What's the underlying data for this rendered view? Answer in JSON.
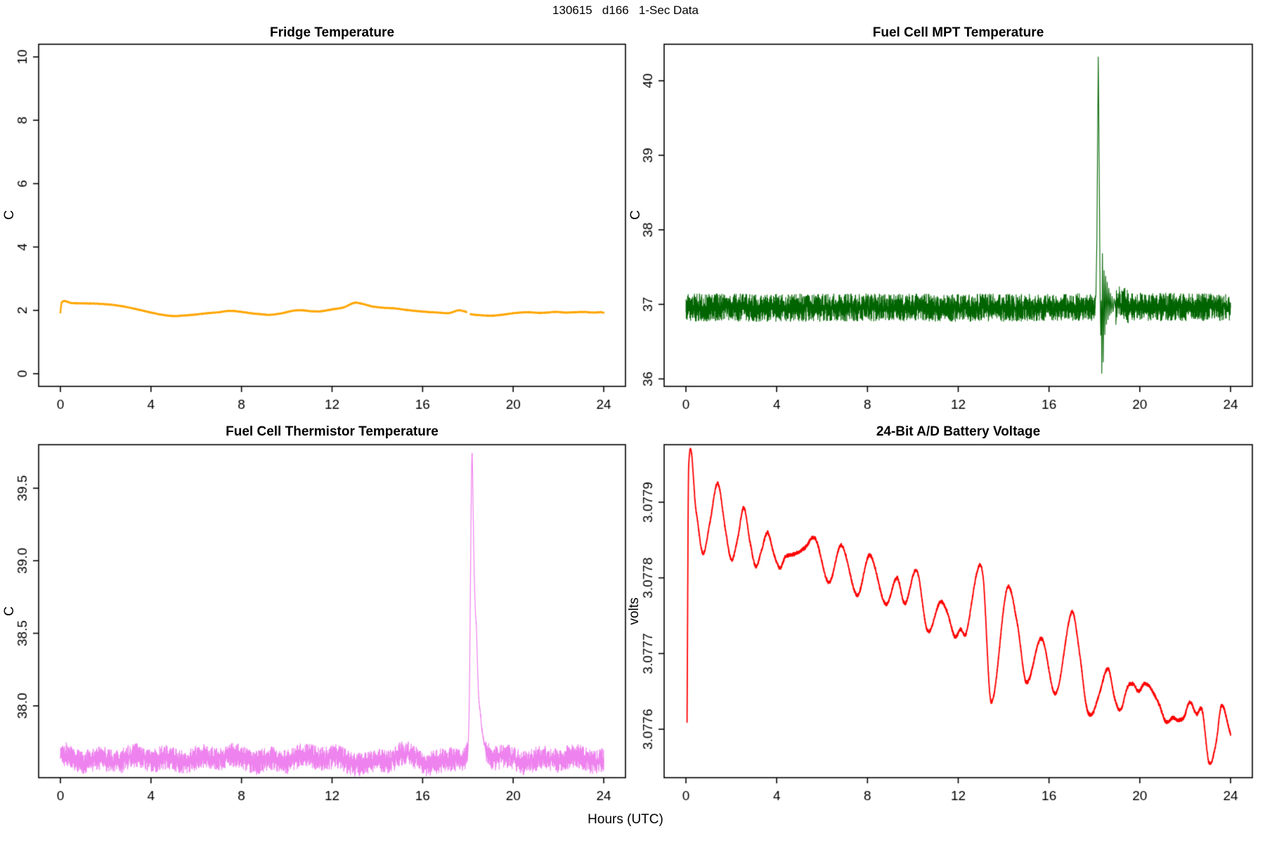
{
  "page": {
    "title": "130615   d166   1-Sec Data",
    "xlabel": "Hours (UTC)"
  },
  "chart_data": [
    {
      "type": "line",
      "title": "Fridge Temperature",
      "ylabel": "C",
      "color": "#FFA500",
      "line_width": 2.4,
      "smooth": true,
      "seed": 11,
      "xlim": [
        -0.96,
        24.96
      ],
      "xticks": [
        0,
        4,
        8,
        12,
        16,
        20,
        24
      ],
      "ylim": [
        -0.4,
        10.4
      ],
      "yticks": [
        0,
        2,
        4,
        6,
        8,
        10
      ],
      "ytick_labels": [
        "0",
        "2",
        "4",
        "6",
        "8",
        "10"
      ],
      "grid": false,
      "legend": null,
      "gaps": [
        [
          17.94,
          18.11
        ]
      ],
      "noise_segments": [
        [
          0,
          24,
          0.006
        ]
      ],
      "wander": [],
      "keypoints": [
        [
          0.0,
          1.93
        ],
        [
          0.06,
          2.26
        ],
        [
          0.5,
          2.23
        ],
        [
          1.0,
          2.22
        ],
        [
          1.6,
          2.21
        ],
        [
          2.2,
          2.18
        ],
        [
          2.8,
          2.12
        ],
        [
          3.4,
          2.03
        ],
        [
          4.0,
          1.93
        ],
        [
          4.5,
          1.86
        ],
        [
          5.0,
          1.82
        ],
        [
          5.5,
          1.84
        ],
        [
          6.0,
          1.87
        ],
        [
          6.5,
          1.91
        ],
        [
          7.0,
          1.94
        ],
        [
          7.4,
          1.98
        ],
        [
          7.8,
          1.97
        ],
        [
          8.3,
          1.92
        ],
        [
          8.8,
          1.88
        ],
        [
          9.3,
          1.86
        ],
        [
          9.8,
          1.91
        ],
        [
          10.3,
          1.99
        ],
        [
          10.7,
          2.0
        ],
        [
          11.1,
          1.97
        ],
        [
          11.5,
          1.97
        ],
        [
          12.0,
          2.03
        ],
        [
          12.5,
          2.09
        ],
        [
          13.0,
          2.24
        ],
        [
          13.3,
          2.21
        ],
        [
          13.8,
          2.12
        ],
        [
          14.3,
          2.08
        ],
        [
          14.8,
          2.06
        ],
        [
          15.2,
          2.02
        ],
        [
          15.7,
          1.98
        ],
        [
          16.2,
          1.95
        ],
        [
          16.7,
          1.93
        ],
        [
          17.1,
          1.91
        ],
        [
          17.35,
          1.95
        ],
        [
          17.6,
          2.0
        ],
        [
          17.93,
          1.95
        ],
        [
          18.12,
          1.88
        ],
        [
          18.5,
          1.85
        ],
        [
          19.0,
          1.83
        ],
        [
          19.5,
          1.86
        ],
        [
          19.9,
          1.9
        ],
        [
          20.3,
          1.93
        ],
        [
          20.7,
          1.94
        ],
        [
          21.1,
          1.92
        ],
        [
          21.5,
          1.93
        ],
        [
          21.9,
          1.95
        ],
        [
          22.3,
          1.93
        ],
        [
          22.7,
          1.94
        ],
        [
          23.1,
          1.95
        ],
        [
          23.5,
          1.93
        ],
        [
          23.9,
          1.94
        ],
        [
          24.0,
          1.92
        ]
      ]
    },
    {
      "type": "line",
      "title": "Fuel Cell MPT Temperature",
      "ylabel": "C",
      "color": "#006400",
      "line_width": 1.1,
      "smooth": false,
      "seed": 22,
      "xlim": [
        -0.96,
        24.96
      ],
      "xticks": [
        0,
        4,
        8,
        12,
        16,
        20,
        24
      ],
      "ylim": [
        35.9,
        40.49
      ],
      "yticks": [
        36,
        37,
        38,
        39,
        40
      ],
      "ytick_labels": [
        "36",
        "37",
        "38",
        "39",
        "40"
      ],
      "grid": false,
      "legend": null,
      "gaps": [],
      "noise_segments": [
        [
          0,
          18.04,
          0.1
        ],
        [
          18.04,
          18.93,
          0.012
        ],
        [
          18.93,
          19.5,
          0.13
        ],
        [
          19.5,
          24,
          0.1
        ]
      ],
      "wander": [],
      "keypoints": [
        [
          0,
          36.96
        ],
        [
          4,
          36.955
        ],
        [
          8,
          36.96
        ],
        [
          12,
          36.955
        ],
        [
          16,
          36.96
        ],
        [
          17.9,
          36.96
        ],
        [
          18.02,
          36.98
        ],
        [
          18.07,
          37.15
        ],
        [
          18.11,
          37.9
        ],
        [
          18.17,
          40.32
        ],
        [
          18.22,
          38.5
        ],
        [
          18.25,
          37.2
        ],
        [
          18.28,
          36.59
        ],
        [
          18.305,
          37.05
        ],
        [
          18.325,
          36.08
        ],
        [
          18.355,
          37.67
        ],
        [
          18.39,
          36.23
        ],
        [
          18.425,
          37.45
        ],
        [
          18.46,
          36.6
        ],
        [
          18.495,
          37.38
        ],
        [
          18.53,
          36.72
        ],
        [
          18.565,
          37.3
        ],
        [
          18.6,
          36.8
        ],
        [
          18.635,
          37.22
        ],
        [
          18.67,
          36.85
        ],
        [
          18.705,
          37.15
        ],
        [
          18.74,
          36.88
        ],
        [
          18.78,
          37.1
        ],
        [
          18.82,
          36.9
        ],
        [
          18.87,
          37.07
        ],
        [
          18.93,
          36.95
        ],
        [
          19.1,
          37.0
        ],
        [
          19.5,
          36.97
        ],
        [
          24,
          36.96
        ]
      ]
    },
    {
      "type": "line",
      "title": "Fuel Cell Thermistor Temperature",
      "ylabel": "C",
      "color": "#EE82EE",
      "line_width": 1.2,
      "smooth": true,
      "seed": 33,
      "xlim": [
        -0.96,
        24.96
      ],
      "xticks": [
        0,
        4,
        8,
        12,
        16,
        20,
        24
      ],
      "ylim": [
        37.505,
        39.8
      ],
      "yticks": [
        38.0,
        38.5,
        39.0,
        39.5
      ],
      "ytick_labels": [
        "38.0",
        "38.5",
        "39.0",
        "39.5"
      ],
      "grid": false,
      "legend": null,
      "gaps": [],
      "noise_segments": [
        [
          0,
          18.0,
          0.045
        ],
        [
          18.0,
          18.78,
          0.012
        ],
        [
          18.78,
          24,
          0.045
        ]
      ],
      "wander": [
        {
          "amp": 0.018,
          "period": 1.5,
          "phase": 0.5
        },
        {
          "amp": 0.012,
          "period": 3.8,
          "phase": 2.1
        }
      ],
      "keypoints": [
        [
          0,
          37.64
        ],
        [
          3,
          37.63
        ],
        [
          6,
          37.64
        ],
        [
          9,
          37.63
        ],
        [
          12,
          37.64
        ],
        [
          13.8,
          37.61
        ],
        [
          15.3,
          37.65
        ],
        [
          16.6,
          37.61
        ],
        [
          17.3,
          37.65
        ],
        [
          17.85,
          37.63
        ],
        [
          17.95,
          37.66
        ],
        [
          18.02,
          37.74
        ],
        [
          18.07,
          38.12
        ],
        [
          18.12,
          38.95
        ],
        [
          18.16,
          39.55
        ],
        [
          18.19,
          39.71
        ],
        [
          18.23,
          39.32
        ],
        [
          18.28,
          38.88
        ],
        [
          18.33,
          38.62
        ],
        [
          18.38,
          38.5
        ],
        [
          18.43,
          38.22
        ],
        [
          18.48,
          38.03
        ],
        [
          18.54,
          37.95
        ],
        [
          18.62,
          37.83
        ],
        [
          18.72,
          37.74
        ],
        [
          18.84,
          37.68
        ],
        [
          19.05,
          37.65
        ],
        [
          19.4,
          37.64
        ],
        [
          24,
          37.63
        ]
      ]
    },
    {
      "type": "line",
      "title": "24-Bit A/D Battery Voltage",
      "ylabel": "volts",
      "color": "#FF0000",
      "line_width": 1.8,
      "smooth": true,
      "seed": 44,
      "xlim": [
        -0.96,
        24.96
      ],
      "xticks": [
        0,
        4,
        8,
        12,
        16,
        20,
        24
      ],
      "ylim": [
        3.077536,
        3.077976
      ],
      "yticks": [
        3.0776,
        3.0777,
        3.0778,
        3.0779
      ],
      "ytick_labels": [
        "3.0776",
        "3.0777",
        "3.0778",
        "3.0779"
      ],
      "grid": false,
      "legend": null,
      "gaps": [],
      "noise_segments": [
        [
          0,
          24,
          1.3e-06
        ]
      ],
      "wander": [],
      "keypoints": [
        [
          0.05,
          3.07761
        ],
        [
          0.12,
          3.077945
        ],
        [
          0.45,
          3.077888
        ],
        [
          0.75,
          3.077832
        ],
        [
          1.05,
          3.077872
        ],
        [
          1.4,
          3.077925
        ],
        [
          1.72,
          3.077868
        ],
        [
          2.0,
          3.077824
        ],
        [
          2.28,
          3.077852
        ],
        [
          2.55,
          3.077893
        ],
        [
          2.82,
          3.077848
        ],
        [
          3.08,
          3.077815
        ],
        [
          3.32,
          3.077835
        ],
        [
          3.6,
          3.07786
        ],
        [
          3.87,
          3.077832
        ],
        [
          4.15,
          3.077813
        ],
        [
          4.38,
          3.077828
        ],
        [
          4.65,
          3.07783
        ],
        [
          4.95,
          3.077834
        ],
        [
          5.25,
          3.07784
        ],
        [
          5.7,
          3.077852
        ],
        [
          6.3,
          3.077794
        ],
        [
          6.85,
          3.077843
        ],
        [
          7.55,
          3.077777
        ],
        [
          8.1,
          3.07783
        ],
        [
          8.8,
          3.077765
        ],
        [
          9.3,
          3.0778
        ],
        [
          9.65,
          3.077766
        ],
        [
          10.17,
          3.07781
        ],
        [
          10.65,
          3.07773
        ],
        [
          11.2,
          3.077768
        ],
        [
          11.5,
          3.077756
        ],
        [
          11.85,
          3.077722
        ],
        [
          12.1,
          3.077732
        ],
        [
          12.35,
          3.077727
        ],
        [
          12.85,
          3.07781
        ],
        [
          13.1,
          3.0778
        ],
        [
          13.45,
          3.077636
        ],
        [
          14.15,
          3.077786
        ],
        [
          14.6,
          3.07774
        ],
        [
          15.0,
          3.077662
        ],
        [
          15.67,
          3.07772
        ],
        [
          16.3,
          3.077647
        ],
        [
          17.0,
          3.077755
        ],
        [
          17.35,
          3.0777
        ],
        [
          17.65,
          3.07763
        ],
        [
          17.9,
          3.07762
        ],
        [
          18.2,
          3.077645
        ],
        [
          18.6,
          3.07768
        ],
        [
          18.9,
          3.07764
        ],
        [
          19.15,
          3.077625
        ],
        [
          19.45,
          3.077655
        ],
        [
          19.7,
          3.07766
        ],
        [
          19.95,
          3.07765
        ],
        [
          20.2,
          3.07766
        ],
        [
          20.45,
          3.077655
        ],
        [
          20.85,
          3.077633
        ],
        [
          21.15,
          3.07761
        ],
        [
          21.45,
          3.077615
        ],
        [
          21.7,
          3.077612
        ],
        [
          21.95,
          3.077616
        ],
        [
          22.2,
          3.077636
        ],
        [
          22.5,
          3.07762
        ],
        [
          22.75,
          3.077625
        ],
        [
          23.05,
          3.077556
        ],
        [
          23.35,
          3.07758
        ],
        [
          23.6,
          3.077631
        ],
        [
          24.0,
          3.077593
        ]
      ]
    }
  ]
}
